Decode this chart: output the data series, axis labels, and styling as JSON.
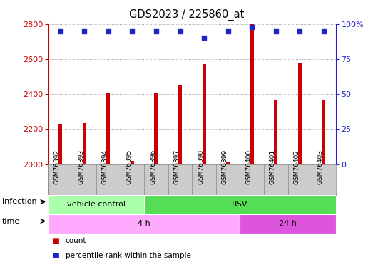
{
  "title": "GDS2023 / 225860_at",
  "samples": [
    "GSM76392",
    "GSM76393",
    "GSM76394",
    "GSM76395",
    "GSM76396",
    "GSM76397",
    "GSM76398",
    "GSM76399",
    "GSM76400",
    "GSM76401",
    "GSM76402",
    "GSM76403"
  ],
  "counts": [
    2230,
    2235,
    2410,
    2020,
    2410,
    2450,
    2570,
    2015,
    2800,
    2370,
    2580,
    2370
  ],
  "percentile_ranks": [
    95,
    95,
    95,
    95,
    95,
    95,
    90,
    95,
    98,
    95,
    95,
    95
  ],
  "ylim_left": [
    2000,
    2800
  ],
  "ylim_right": [
    0,
    100
  ],
  "yticks_left": [
    2000,
    2200,
    2400,
    2600,
    2800
  ],
  "yticks_right": [
    0,
    25,
    50,
    75,
    100
  ],
  "bar_color": "#cc0000",
  "dot_color": "#2222cc",
  "infection_groups": [
    {
      "label": "vehicle control",
      "start": 0,
      "end": 4,
      "color": "#aaffaa"
    },
    {
      "label": "RSV",
      "start": 4,
      "end": 12,
      "color": "#55dd55"
    }
  ],
  "time_groups": [
    {
      "label": "4 h",
      "start": 0,
      "end": 8,
      "color": "#ffaaff"
    },
    {
      "label": "24 h",
      "start": 8,
      "end": 12,
      "color": "#dd55dd"
    }
  ],
  "background_color": "#ffffff",
  "grid_color": "#888888",
  "label_bg_color": "#cccccc",
  "bar_width": 0.15
}
